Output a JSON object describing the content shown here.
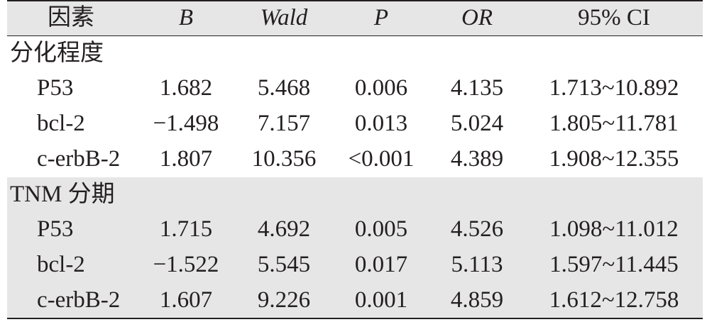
{
  "table": {
    "header": [
      "因素",
      "B",
      "Wald",
      "P",
      "OR",
      "95% CI"
    ],
    "sections": [
      {
        "title": "分化程度",
        "rows": [
          [
            "P53",
            "1.682",
            "5.468",
            "0.006",
            "4.135",
            "1.713~10.892"
          ],
          [
            "bcl-2",
            "−1.498",
            "7.157",
            "0.013",
            "5.024",
            "1.805~11.781"
          ],
          [
            "c-erbB-2",
            "1.807",
            "10.356",
            "<0.001",
            "4.389",
            "1.908~12.355"
          ]
        ]
      },
      {
        "title": "TNM 分期",
        "rows": [
          [
            "P53",
            "1.715",
            "4.692",
            "0.005",
            "4.526",
            "1.098~11.012"
          ],
          [
            "bcl-2",
            "−1.522",
            "5.545",
            "0.017",
            "5.113",
            "1.597~11.445"
          ],
          [
            "c-erbB-2",
            "1.607",
            "9.226",
            "0.001",
            "4.859",
            "1.612~12.758"
          ]
        ]
      }
    ]
  }
}
